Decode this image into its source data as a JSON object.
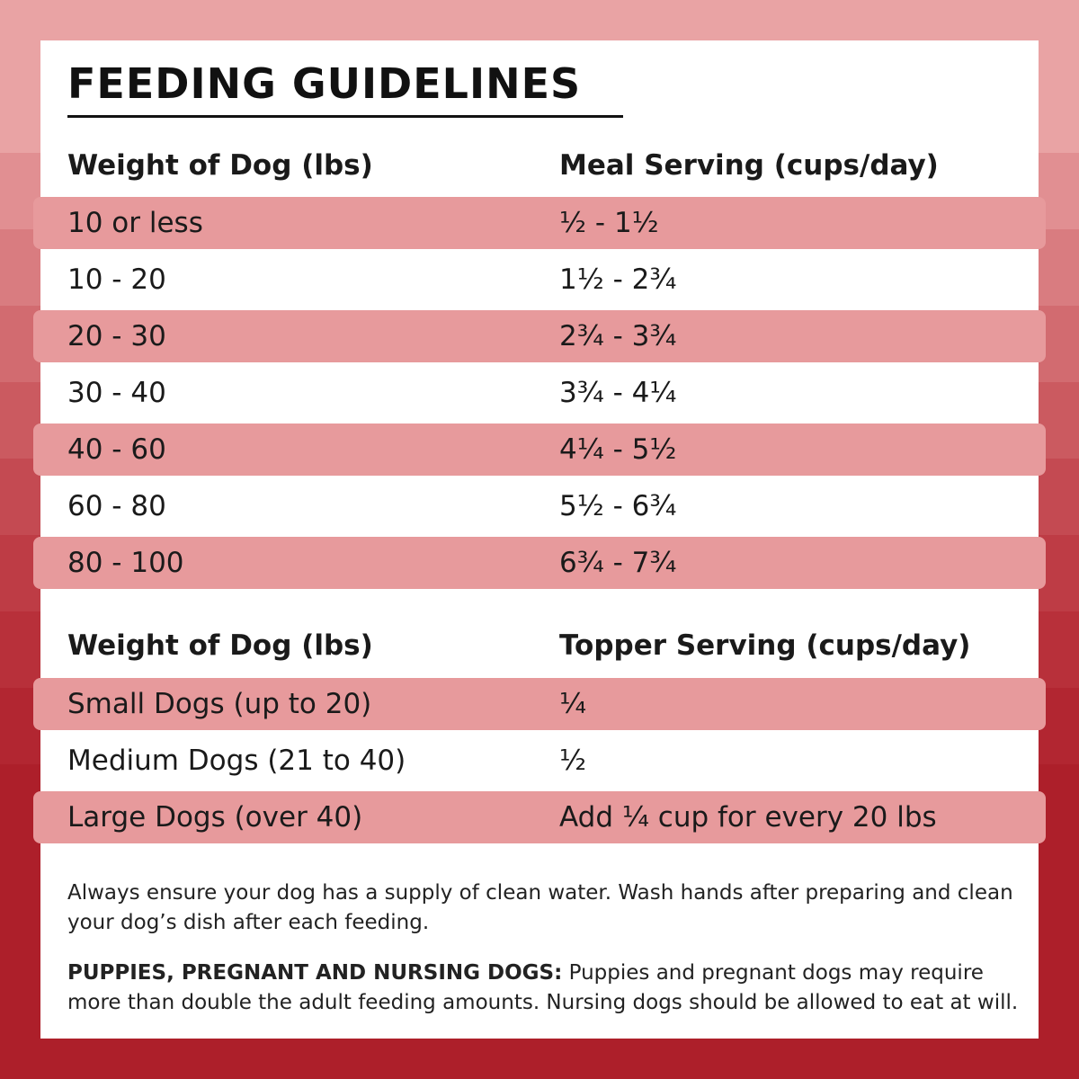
{
  "title": "FEEDING GUIDELINES",
  "meal_table": {
    "headers": [
      "Weight of Dog (lbs)",
      "Meal Serving (cups/day)"
    ],
    "rows": [
      [
        "10 or less",
        "½ - 1½"
      ],
      [
        "10 - 20",
        "1½ - 2¾"
      ],
      [
        "20 - 30",
        "2¾ - 3¾"
      ],
      [
        "30 - 40",
        "3¾ - 4¼"
      ],
      [
        "40 - 60",
        "4¼ - 5½"
      ],
      [
        "60 - 80",
        "5½ - 6¾"
      ],
      [
        "80 - 100",
        "6¾ - 7¾"
      ]
    ]
  },
  "topper_table": {
    "headers": [
      "Weight of Dog (lbs)",
      "Topper Serving (cups/day)"
    ],
    "rows": [
      [
        "Small Dogs (up to 20)",
        "¼"
      ],
      [
        "Medium Dogs (21 to 40)",
        "½"
      ],
      [
        "Large Dogs (over 40)",
        "Add ¼ cup for every 20 lbs"
      ]
    ]
  },
  "notes": {
    "care": "Always ensure your dog has a supply of clean water. Wash hands after preparing and clean your dog’s dish after each feeding.",
    "puppies_label": "PUPPIES, PREGNANT AND NURSING DOGS:",
    "puppies_text": "Puppies and pregnant dogs may require more than double the adult feeding amounts. Nursing dogs should be allowed to eat at will."
  }
}
